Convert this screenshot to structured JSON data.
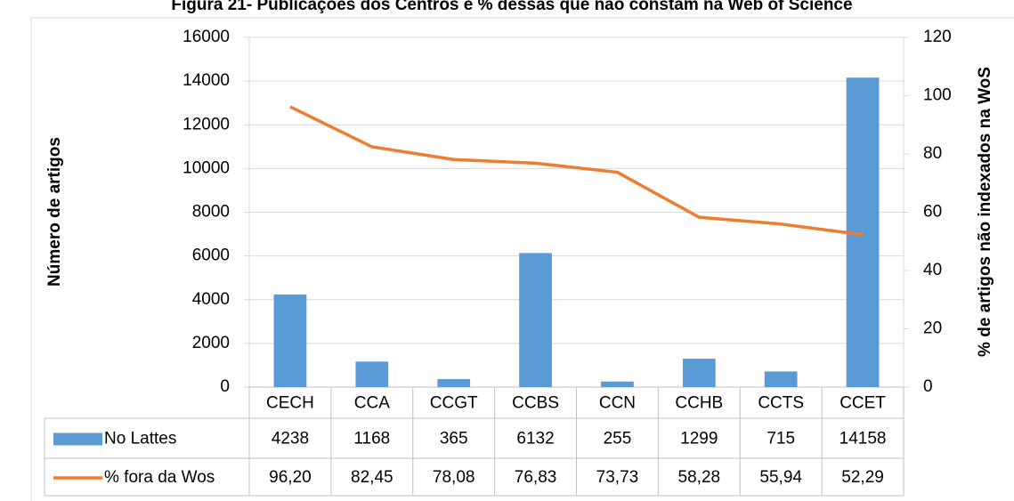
{
  "chart_data": {
    "type": "bar",
    "title": "Figura 21- Publicações dos Centros e % dessas que não constam na Web of Science",
    "ylabel": "Número de artigos",
    "y2label": "% de artigos não indexados na WoS",
    "categories": [
      "CECH",
      "CCA",
      "CCGT",
      "CCBS",
      "CCN",
      "CCHB",
      "CCTS",
      "CCET"
    ],
    "series": [
      {
        "name": "No Lattes",
        "type": "bar",
        "color": "#5b9bd5",
        "values": [
          4238,
          1168,
          365,
          6132,
          255,
          1299,
          715,
          14158
        ]
      },
      {
        "name": "% fora da Wos",
        "type": "line",
        "axis": "y2",
        "color": "#ed7d31",
        "values": [
          96.2,
          82.45,
          78.08,
          76.83,
          73.73,
          58.28,
          55.94,
          52.29
        ],
        "value_labels": [
          "96,20",
          "82,45",
          "78,08",
          "76,83",
          "73,73",
          "58,28",
          "55,94",
          "52,29"
        ]
      }
    ],
    "ylim": [
      0,
      16000
    ],
    "yticks": [
      0,
      2000,
      4000,
      6000,
      8000,
      10000,
      12000,
      14000,
      16000
    ],
    "y2lim": [
      0,
      120
    ],
    "y2ticks": [
      0,
      20,
      40,
      60,
      80,
      100,
      120
    ],
    "grid": true,
    "data_table": true
  }
}
